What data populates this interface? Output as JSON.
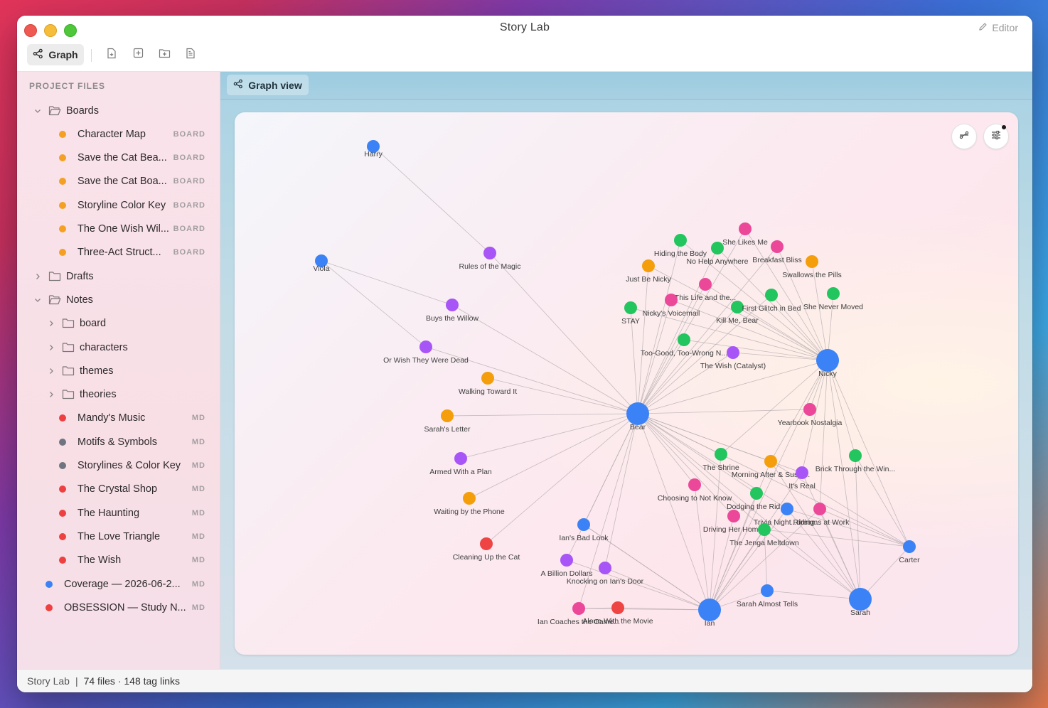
{
  "window": {
    "title": "Story Lab",
    "editor_label": "Editor"
  },
  "toolbar": {
    "graph_label": "Graph",
    "buttons": [
      {
        "icon": "new-file-icon"
      },
      {
        "icon": "new-board-icon"
      },
      {
        "icon": "new-folder-icon"
      },
      {
        "icon": "document-icon"
      }
    ]
  },
  "sidebar": {
    "header": "PROJECT FILES",
    "items": [
      {
        "kind": "folder",
        "label": "Boards",
        "expanded": true,
        "depth": 0
      },
      {
        "kind": "file",
        "label": "Character Map",
        "badge": "BOARD",
        "dot": "#f4a024",
        "depth": 1
      },
      {
        "kind": "file",
        "label": "Save the Cat Bea...",
        "badge": "BOARD",
        "dot": "#f4a024",
        "depth": 1
      },
      {
        "kind": "file",
        "label": "Save the Cat Boa...",
        "badge": "BOARD",
        "dot": "#f4a024",
        "depth": 1
      },
      {
        "kind": "file",
        "label": "Storyline Color Key",
        "badge": "BOARD",
        "dot": "#f4a024",
        "depth": 1
      },
      {
        "kind": "file",
        "label": "The One Wish Wil...",
        "badge": "BOARD",
        "dot": "#f4a024",
        "depth": 1
      },
      {
        "kind": "file",
        "label": "Three-Act Struct...",
        "badge": "BOARD",
        "dot": "#f4a024",
        "depth": 1
      },
      {
        "kind": "folder",
        "label": "Drafts",
        "expanded": false,
        "depth": 0
      },
      {
        "kind": "folder",
        "label": "Notes",
        "expanded": true,
        "depth": 0
      },
      {
        "kind": "folder",
        "label": "board",
        "expanded": false,
        "depth": 1
      },
      {
        "kind": "folder",
        "label": "characters",
        "expanded": false,
        "depth": 1
      },
      {
        "kind": "folder",
        "label": "themes",
        "expanded": false,
        "depth": 1
      },
      {
        "kind": "folder",
        "label": "theories",
        "expanded": false,
        "depth": 1
      },
      {
        "kind": "file",
        "label": "Mandy's Music",
        "badge": "MD",
        "dot": "#ee4040",
        "depth": 1
      },
      {
        "kind": "file",
        "label": "Motifs & Symbols",
        "badge": "MD",
        "dot": "#6e7480",
        "depth": 1
      },
      {
        "kind": "file",
        "label": "Storylines & Color Key",
        "badge": "MD",
        "dot": "#6e7480",
        "depth": 1
      },
      {
        "kind": "file",
        "label": "The Crystal Shop",
        "badge": "MD",
        "dot": "#ee4040",
        "depth": 1
      },
      {
        "kind": "file",
        "label": "The Haunting",
        "badge": "MD",
        "dot": "#ee4040",
        "depth": 1
      },
      {
        "kind": "file",
        "label": "The Love Triangle",
        "badge": "MD",
        "dot": "#ee4040",
        "depth": 1
      },
      {
        "kind": "file",
        "label": "The Wish",
        "badge": "MD",
        "dot": "#ee4040",
        "depth": 1
      },
      {
        "kind": "file",
        "label": "Coverage — 2026-06-2...",
        "badge": "MD",
        "dot": "#3b82f6",
        "depth": 0
      },
      {
        "kind": "file",
        "label": "OBSESSION — Study N...",
        "badge": "MD",
        "dot": "#ee4040",
        "depth": 0
      }
    ]
  },
  "tab": {
    "label": "Graph view"
  },
  "graph_controls": [
    {
      "icon": "layout-icon"
    },
    {
      "icon": "filter-settings-icon",
      "has_notification": true
    }
  ],
  "colors": {
    "blue": "#3b82f6",
    "purple": "#a855f7",
    "green": "#22c55e",
    "orange": "#f59e0b",
    "pink": "#ec4899",
    "red": "#ef4444",
    "edge": "#b3a9ae"
  },
  "graph": {
    "nodes": [
      {
        "id": "harry",
        "label": "Harry",
        "color": "blue"
      },
      {
        "id": "viola",
        "label": "Viola",
        "color": "blue"
      },
      {
        "id": "rules",
        "label": "Rules of the Magic",
        "color": "purple"
      },
      {
        "id": "willow",
        "label": "Buys the Willow",
        "color": "purple"
      },
      {
        "id": "orwish",
        "label": "Or Wish They Were Dead",
        "color": "purple"
      },
      {
        "id": "walking",
        "label": "Walking Toward It",
        "color": "orange"
      },
      {
        "id": "sarahletter",
        "label": "Sarah's Letter",
        "color": "orange"
      },
      {
        "id": "armed",
        "label": "Armed With a Plan",
        "color": "purple"
      },
      {
        "id": "waiting",
        "label": "Waiting by the Phone",
        "color": "orange"
      },
      {
        "id": "cleaning",
        "label": "Cleaning Up the Cat",
        "color": "red"
      },
      {
        "id": "bear",
        "label": "Bear",
        "color": "blue",
        "big": true
      },
      {
        "id": "nicky",
        "label": "Nicky",
        "color": "blue",
        "big": true
      },
      {
        "id": "ian",
        "label": "Ian",
        "color": "blue",
        "big": true
      },
      {
        "id": "sarah",
        "label": "Sarah",
        "color": "blue",
        "big": true
      },
      {
        "id": "carter",
        "label": "Carter",
        "color": "blue"
      },
      {
        "id": "sheslikes",
        "label": "She Likes Me",
        "color": "pink"
      },
      {
        "id": "hiding",
        "label": "Hiding the Body",
        "color": "green"
      },
      {
        "id": "nohelp",
        "label": "No Help Anywhere",
        "color": "green"
      },
      {
        "id": "breakfast",
        "label": "Breakfast Bliss",
        "color": "pink"
      },
      {
        "id": "swallows",
        "label": "Swallows the Pills",
        "color": "orange"
      },
      {
        "id": "justbe",
        "label": "Just Be Nicky",
        "color": "orange"
      },
      {
        "id": "thislife",
        "label": "This Life and the...",
        "color": "pink"
      },
      {
        "id": "voicemail",
        "label": "Nicky's Voicemail",
        "color": "pink"
      },
      {
        "id": "stay",
        "label": "STAY",
        "color": "green"
      },
      {
        "id": "killme",
        "label": "Kill Me, Bear",
        "color": "green"
      },
      {
        "id": "firstglitch",
        "label": "First Glitch in Bed",
        "color": "green"
      },
      {
        "id": "nevermoved",
        "label": "She Never Moved",
        "color": "green"
      },
      {
        "id": "toogood",
        "label": "Too-Good, Too-Wrong N...",
        "color": "green"
      },
      {
        "id": "thewish",
        "label": "The Wish (Catalyst)",
        "color": "purple"
      },
      {
        "id": "yearbook",
        "label": "Yearbook Nostalgia",
        "color": "pink"
      },
      {
        "id": "shrine",
        "label": "The Shrine",
        "color": "green"
      },
      {
        "id": "morning",
        "label": "Morning After & Suspi...",
        "color": "orange"
      },
      {
        "id": "itsreal",
        "label": "It's Real",
        "color": "purple"
      },
      {
        "id": "brick",
        "label": "Brick Through the Win...",
        "color": "green"
      },
      {
        "id": "choosing",
        "label": "Choosing to Not Know",
        "color": "pink"
      },
      {
        "id": "dodging",
        "label": "Dodging the Rid...",
        "color": "green"
      },
      {
        "id": "driving",
        "label": "Driving Her Hom...",
        "color": "pink"
      },
      {
        "id": "trivia",
        "label": "Trivia Night Riding...",
        "color": "blue"
      },
      {
        "id": "atwork",
        "label": "...dreams at Work",
        "color": "pink"
      },
      {
        "id": "jenga",
        "label": "The Jenga Meltdown",
        "color": "green"
      },
      {
        "id": "ianslook",
        "label": "Ian's Bad Look",
        "color": "blue"
      },
      {
        "id": "billion",
        "label": "A Billion Dollars",
        "color": "purple"
      },
      {
        "id": "knocking",
        "label": "Knocking on Ian's Door",
        "color": "purple"
      },
      {
        "id": "iancoaches",
        "label": "Ian Coaches the Came...",
        "color": "pink"
      },
      {
        "id": "alone",
        "label": "Alone With the Movie",
        "color": "red"
      },
      {
        "id": "sarahalmost",
        "label": "Sarah Almost Tells",
        "color": "blue"
      }
    ],
    "edges": [
      [
        "harry",
        "rules"
      ],
      [
        "rules",
        "bear"
      ],
      [
        "viola",
        "willow"
      ],
      [
        "viola",
        "orwish"
      ],
      [
        "willow",
        "bear"
      ],
      [
        "orwish",
        "bear"
      ],
      [
        "walking",
        "bear"
      ],
      [
        "sarahletter",
        "bear"
      ],
      [
        "armed",
        "bear"
      ],
      [
        "waiting",
        "bear"
      ],
      [
        "cleaning",
        "bear"
      ],
      [
        "bear",
        "nicky"
      ],
      [
        "bear",
        "ian"
      ],
      [
        "bear",
        "sarah"
      ],
      [
        "bear",
        "carter"
      ],
      [
        "bear",
        "hiding"
      ],
      [
        "bear",
        "nohelp"
      ],
      [
        "bear",
        "sheslikes"
      ],
      [
        "bear",
        "justbe"
      ],
      [
        "bear",
        "thislife"
      ],
      [
        "bear",
        "voicemail"
      ],
      [
        "bear",
        "stay"
      ],
      [
        "bear",
        "killme"
      ],
      [
        "bear",
        "firstglitch"
      ],
      [
        "bear",
        "toogood"
      ],
      [
        "bear",
        "thewish"
      ],
      [
        "bear",
        "breakfast"
      ],
      [
        "bear",
        "yearbook"
      ],
      [
        "bear",
        "shrine"
      ],
      [
        "bear",
        "morning"
      ],
      [
        "bear",
        "itsreal"
      ],
      [
        "bear",
        "choosing"
      ],
      [
        "bear",
        "dodging"
      ],
      [
        "bear",
        "driving"
      ],
      [
        "bear",
        "trivia"
      ],
      [
        "bear",
        "jenga"
      ],
      [
        "bear",
        "ianslook"
      ],
      [
        "bear",
        "billion"
      ],
      [
        "bear",
        "knocking"
      ],
      [
        "bear",
        "iancoaches"
      ],
      [
        "nicky",
        "sheslikes"
      ],
      [
        "nicky",
        "hiding"
      ],
      [
        "nicky",
        "nohelp"
      ],
      [
        "nicky",
        "breakfast"
      ],
      [
        "nicky",
        "swallows"
      ],
      [
        "nicky",
        "justbe"
      ],
      [
        "nicky",
        "thislife"
      ],
      [
        "nicky",
        "voicemail"
      ],
      [
        "nicky",
        "stay"
      ],
      [
        "nicky",
        "killme"
      ],
      [
        "nicky",
        "firstglitch"
      ],
      [
        "nicky",
        "nevermoved"
      ],
      [
        "nicky",
        "toogood"
      ],
      [
        "nicky",
        "thewish"
      ],
      [
        "nicky",
        "yearbook"
      ],
      [
        "nicky",
        "shrine"
      ],
      [
        "nicky",
        "morning"
      ],
      [
        "nicky",
        "itsreal"
      ],
      [
        "nicky",
        "brick"
      ],
      [
        "nicky",
        "atwork"
      ],
      [
        "nicky",
        "carter"
      ],
      [
        "nicky",
        "ian"
      ],
      [
        "nicky",
        "sarah"
      ],
      [
        "ian",
        "ianslook"
      ],
      [
        "ian",
        "billion"
      ],
      [
        "ian",
        "knocking"
      ],
      [
        "ian",
        "iancoaches"
      ],
      [
        "ian",
        "alone"
      ],
      [
        "ian",
        "sarahalmost"
      ],
      [
        "ian",
        "shrine"
      ],
      [
        "ian",
        "morning"
      ],
      [
        "ian",
        "choosing"
      ],
      [
        "ian",
        "dodging"
      ],
      [
        "ian",
        "driving"
      ],
      [
        "ian",
        "trivia"
      ],
      [
        "ian",
        "jenga"
      ],
      [
        "ian",
        "itsreal"
      ],
      [
        "ian",
        "atwork"
      ],
      [
        "sarah",
        "sarahalmost"
      ],
      [
        "sarah",
        "carter"
      ],
      [
        "sarah",
        "jenga"
      ],
      [
        "sarah",
        "trivia"
      ],
      [
        "sarah",
        "atwork"
      ],
      [
        "sarah",
        "morning"
      ],
      [
        "sarah",
        "brick"
      ],
      [
        "sarah",
        "itsreal"
      ],
      [
        "carter",
        "morning"
      ],
      [
        "carter",
        "atwork"
      ],
      [
        "carter",
        "jenga"
      ],
      [
        "carter",
        "trivia"
      ],
      [
        "carter",
        "brick"
      ],
      [
        "iancoaches",
        "alone"
      ],
      [
        "ianslook",
        "ian"
      ],
      [
        "sarahalmost",
        "jenga"
      ]
    ]
  },
  "status": {
    "app": "Story Lab",
    "separator": "|",
    "summary": "74 files · 148 tag links"
  }
}
